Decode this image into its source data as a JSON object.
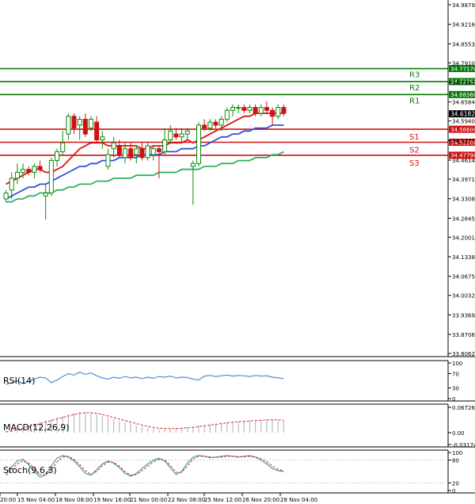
{
  "chart_data": {
    "type": "candlestick",
    "instrument_panel": {
      "y_ticks": [
        "34.98795",
        "34.92165",
        "34.85535",
        "34.79100",
        "34.72470",
        "34.65840",
        "34.59405",
        "34.52775",
        "34.46145",
        "34.39710",
        "34.33080",
        "34.26450",
        "34.20015",
        "34.13385",
        "34.06755",
        "34.00320",
        "33.93690",
        "33.87060",
        "33.80625"
      ],
      "ylim": [
        33.80625,
        34.98795
      ],
      "candles": [
        {
          "o": 34.33,
          "h": 34.36,
          "l": 34.32,
          "c": 34.35
        },
        {
          "o": 34.36,
          "h": 34.42,
          "l": 34.33,
          "c": 34.4
        },
        {
          "o": 34.4,
          "h": 34.45,
          "l": 34.38,
          "c": 34.42
        },
        {
          "o": 34.42,
          "h": 34.45,
          "l": 34.4,
          "c": 34.43
        },
        {
          "o": 34.43,
          "h": 34.44,
          "l": 34.41,
          "c": 34.42
        },
        {
          "o": 34.42,
          "h": 34.45,
          "l": 34.4,
          "c": 34.44
        },
        {
          "o": 34.44,
          "h": 34.46,
          "l": 34.42,
          "c": 34.43
        },
        {
          "o": 34.34,
          "h": 34.38,
          "l": 34.26,
          "c": 34.35
        },
        {
          "o": 34.35,
          "h": 34.47,
          "l": 34.34,
          "c": 34.46
        },
        {
          "o": 34.46,
          "h": 34.5,
          "l": 34.44,
          "c": 34.49
        },
        {
          "o": 34.49,
          "h": 34.56,
          "l": 34.48,
          "c": 34.52
        },
        {
          "o": 34.55,
          "h": 34.62,
          "l": 34.53,
          "c": 34.61
        },
        {
          "o": 34.61,
          "h": 34.62,
          "l": 34.55,
          "c": 34.57
        },
        {
          "o": 34.58,
          "h": 34.61,
          "l": 34.53,
          "c": 34.6
        },
        {
          "o": 34.6,
          "h": 34.62,
          "l": 34.54,
          "c": 34.55
        },
        {
          "o": 34.57,
          "h": 34.61,
          "l": 34.56,
          "c": 34.6
        },
        {
          "o": 34.59,
          "h": 34.61,
          "l": 34.52,
          "c": 34.53
        },
        {
          "o": 34.53,
          "h": 34.56,
          "l": 34.5,
          "c": 34.54
        },
        {
          "o": 34.44,
          "h": 34.5,
          "l": 34.43,
          "c": 34.48
        },
        {
          "o": 34.5,
          "h": 34.54,
          "l": 34.47,
          "c": 34.52
        },
        {
          "o": 34.51,
          "h": 34.53,
          "l": 34.47,
          "c": 34.48
        },
        {
          "o": 34.47,
          "h": 34.52,
          "l": 34.45,
          "c": 34.5
        },
        {
          "o": 34.5,
          "h": 34.52,
          "l": 34.46,
          "c": 34.47
        },
        {
          "o": 34.48,
          "h": 34.51,
          "l": 34.45,
          "c": 34.5
        },
        {
          "o": 34.5,
          "h": 34.52,
          "l": 34.46,
          "c": 34.47
        },
        {
          "o": 34.47,
          "h": 34.52,
          "l": 34.46,
          "c": 34.51
        },
        {
          "o": 34.48,
          "h": 34.51,
          "l": 34.46,
          "c": 34.5
        },
        {
          "o": 34.5,
          "h": 34.51,
          "l": 34.4,
          "c": 34.49
        },
        {
          "o": 34.49,
          "h": 34.57,
          "l": 34.48,
          "c": 34.53
        },
        {
          "o": 34.53,
          "h": 34.58,
          "l": 34.52,
          "c": 34.56
        },
        {
          "o": 34.55,
          "h": 34.57,
          "l": 34.53,
          "c": 34.54
        },
        {
          "o": 34.54,
          "h": 34.57,
          "l": 34.52,
          "c": 34.55
        },
        {
          "o": 34.55,
          "h": 34.57,
          "l": 34.53,
          "c": 34.56
        },
        {
          "o": 34.44,
          "h": 34.46,
          "l": 34.31,
          "c": 34.45
        },
        {
          "o": 34.45,
          "h": 34.59,
          "l": 34.44,
          "c": 34.58
        },
        {
          "o": 34.58,
          "h": 34.6,
          "l": 34.56,
          "c": 34.57
        },
        {
          "o": 34.57,
          "h": 34.6,
          "l": 34.56,
          "c": 34.59
        },
        {
          "o": 34.59,
          "h": 34.6,
          "l": 34.57,
          "c": 34.58
        },
        {
          "o": 34.58,
          "h": 34.61,
          "l": 34.56,
          "c": 34.6
        },
        {
          "o": 34.6,
          "h": 34.64,
          "l": 34.59,
          "c": 34.63
        },
        {
          "o": 34.63,
          "h": 34.65,
          "l": 34.61,
          "c": 34.64
        },
        {
          "o": 34.64,
          "h": 34.65,
          "l": 34.62,
          "c": 34.64
        },
        {
          "o": 34.64,
          "h": 34.65,
          "l": 34.62,
          "c": 34.63
        },
        {
          "o": 34.63,
          "h": 34.65,
          "l": 34.62,
          "c": 34.64
        },
        {
          "o": 34.64,
          "h": 34.65,
          "l": 34.61,
          "c": 34.62
        },
        {
          "o": 34.62,
          "h": 34.65,
          "l": 34.61,
          "c": 34.64
        },
        {
          "o": 34.64,
          "h": 34.66,
          "l": 34.62,
          "c": 34.63
        },
        {
          "o": 34.63,
          "h": 34.64,
          "l": 34.58,
          "c": 34.61
        },
        {
          "o": 34.61,
          "h": 34.65,
          "l": 34.6,
          "c": 34.64
        },
        {
          "o": 34.64,
          "h": 34.65,
          "l": 34.61,
          "c": 34.62
        }
      ],
      "ma_red": [
        34.38,
        34.39,
        34.4,
        34.41,
        34.42,
        34.43,
        34.43,
        34.42,
        34.42,
        34.43,
        34.44,
        34.46,
        34.48,
        34.5,
        34.51,
        34.52,
        34.52,
        34.52,
        34.51,
        34.51,
        34.51,
        34.51,
        34.51,
        34.51,
        34.5,
        34.5,
        34.51,
        34.51,
        34.51,
        34.52,
        34.52,
        34.52,
        34.53,
        34.52,
        34.53,
        34.54,
        34.55,
        34.56,
        34.57,
        34.58,
        34.59,
        34.6,
        34.61,
        34.61,
        34.62,
        34.62,
        34.62,
        34.62,
        34.62,
        34.62
      ],
      "ma_blue": [
        34.33,
        34.34,
        34.35,
        34.36,
        34.37,
        34.37,
        34.38,
        34.38,
        34.39,
        34.4,
        34.41,
        34.42,
        34.43,
        34.44,
        34.44,
        34.45,
        34.45,
        34.46,
        34.46,
        34.46,
        34.47,
        34.47,
        34.47,
        34.47,
        34.48,
        34.48,
        34.48,
        34.48,
        34.49,
        34.49,
        34.49,
        34.5,
        34.5,
        34.5,
        34.51,
        34.51,
        34.52,
        34.53,
        34.54,
        34.54,
        34.55,
        34.55,
        34.56,
        34.56,
        34.57,
        34.57,
        34.57,
        34.58,
        34.58,
        34.58
      ],
      "ma_green": [
        34.32,
        34.32,
        34.33,
        34.33,
        34.34,
        34.34,
        34.35,
        34.35,
        34.35,
        34.36,
        34.36,
        34.37,
        34.37,
        34.38,
        34.38,
        34.38,
        34.39,
        34.39,
        34.39,
        34.4,
        34.4,
        34.4,
        34.4,
        34.41,
        34.41,
        34.41,
        34.41,
        34.42,
        34.42,
        34.42,
        34.42,
        34.43,
        34.43,
        34.43,
        34.43,
        34.44,
        34.44,
        34.44,
        34.45,
        34.45,
        34.45,
        34.46,
        34.46,
        34.46,
        34.47,
        34.47,
        34.47,
        34.48,
        34.48,
        34.49
      ],
      "current_price": "34.61826",
      "levels": [
        {
          "name": "R3",
          "value": 34.7717,
          "label": "34.77170",
          "color": "#0a7a0a"
        },
        {
          "name": "R2",
          "value": 34.7276,
          "label": "34.72760",
          "color": "#0a7a0a"
        },
        {
          "name": "R1",
          "value": 34.6836,
          "label": "34.68360",
          "color": "#0a7a0a"
        },
        {
          "name": "S1",
          "value": 34.566,
          "label": "34.56600",
          "color": "#d01010"
        },
        {
          "name": "S2",
          "value": 34.522,
          "label": "34.52200",
          "color": "#d01010"
        },
        {
          "name": "S3",
          "value": 34.4779,
          "label": "34.47790",
          "color": "#d01010"
        }
      ]
    },
    "rsi_panel": {
      "label": "RSI(14)",
      "y_ticks": [
        "100",
        "70",
        "30",
        "0"
      ],
      "ylim": [
        0,
        100
      ],
      "values": [
        40,
        45,
        50,
        42,
        48,
        55,
        60,
        58,
        45,
        52,
        62,
        70,
        66,
        74,
        68,
        72,
        64,
        58,
        55,
        60,
        57,
        62,
        58,
        60,
        56,
        60,
        57,
        62,
        60,
        63,
        58,
        60,
        59,
        55,
        52,
        63,
        65,
        62,
        64,
        66,
        63,
        65,
        64,
        62,
        65,
        63,
        64,
        60,
        58,
        56
      ]
    },
    "macd_panel": {
      "label": "MACD(12,26,9)",
      "y_ticks": [
        "0.067263",
        "0.00",
        "-0.031746"
      ],
      "ylim": [
        -0.031746,
        0.067263
      ],
      "histogram": [
        0.005,
        0.008,
        0.012,
        0.016,
        0.02,
        0.024,
        0.028,
        0.032,
        0.036,
        0.04,
        0.044,
        0.048,
        0.052,
        0.055,
        0.055,
        0.052,
        0.048,
        0.044,
        0.04,
        0.036,
        0.032,
        0.028,
        0.024,
        0.02,
        0.017,
        0.014,
        0.012,
        0.01,
        0.009,
        0.01,
        0.011,
        0.012,
        0.014,
        0.016,
        0.018,
        0.02,
        0.022,
        0.024,
        0.026,
        0.028,
        0.029,
        0.03,
        0.031,
        0.032,
        0.033,
        0.034,
        0.034,
        0.034,
        0.033,
        0.032
      ],
      "signal": [
        0.002,
        0.004,
        0.008,
        0.012,
        0.016,
        0.02,
        0.024,
        0.028,
        0.032,
        0.036,
        0.04,
        0.044,
        0.048,
        0.051,
        0.053,
        0.053,
        0.051,
        0.048,
        0.044,
        0.04,
        0.036,
        0.032,
        0.028,
        0.024,
        0.02,
        0.017,
        0.014,
        0.012,
        0.011,
        0.011,
        0.011,
        0.012,
        0.013,
        0.014,
        0.016,
        0.018,
        0.02,
        0.022,
        0.024,
        0.026,
        0.028,
        0.029,
        0.03,
        0.031,
        0.032,
        0.033,
        0.034,
        0.034,
        0.034,
        0.033
      ]
    },
    "stoch_panel": {
      "label": "Stoch(9,6,3)",
      "y_ticks": [
        "100",
        "80",
        "20",
        "0"
      ],
      "ylim": [
        0,
        100
      ],
      "k": [
        45,
        62,
        78,
        82,
        68,
        50,
        35,
        42,
        65,
        85,
        92,
        88,
        78,
        62,
        45,
        40,
        55,
        70,
        78,
        72,
        60,
        45,
        38,
        45,
        58,
        70,
        80,
        85,
        78,
        60,
        42,
        50,
        72,
        88,
        92,
        90,
        86,
        88,
        90,
        92,
        90,
        88,
        90,
        92,
        88,
        80,
        70,
        58,
        52,
        50
      ],
      "d": [
        40,
        55,
        70,
        78,
        72,
        58,
        42,
        40,
        55,
        75,
        88,
        90,
        82,
        68,
        52,
        42,
        50,
        65,
        75,
        74,
        64,
        50,
        40,
        42,
        52,
        64,
        75,
        82,
        80,
        66,
        48,
        48,
        64,
        82,
        90,
        90,
        88,
        87,
        88,
        90,
        90,
        89,
        89,
        90,
        88,
        84,
        76,
        64,
        56,
        52
      ]
    },
    "x_ticks": [
      "20:00",
      "15 Nov 04:00",
      "18 Nov 08:00",
      "19 Nov 16:00",
      "21 Nov 00:00",
      "22 Nov 08:00",
      "25 Nov 12:00",
      "26 Nov 20:00",
      "28 Nov 04:00"
    ]
  },
  "colors": {
    "bull": "#0a8a0a",
    "bear": "#d01010",
    "ma_red": "#e01010",
    "ma_blue": "#3050e0",
    "ma_green": "#30b060",
    "rsi": "#4a8fd8",
    "macd_signal": "#e02020",
    "macd_hist": "#bbbbbb",
    "stoch_k": "#3aa3a3",
    "stoch_d": "#e02020",
    "axis": "#000000",
    "grid": "#dddddd"
  }
}
